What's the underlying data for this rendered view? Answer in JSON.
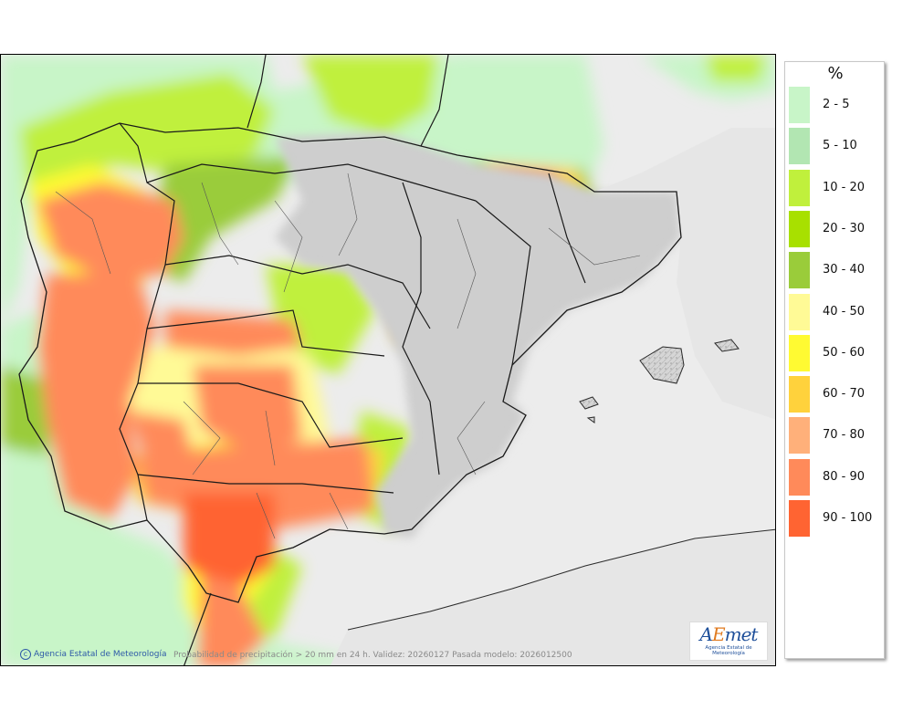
{
  "legend": {
    "title": "%",
    "items": [
      {
        "label": "2 - 5",
        "color": "#c8f5c8"
      },
      {
        "label": "5 - 10",
        "color": "#b2e6b2"
      },
      {
        "label": "10 - 20",
        "color": "#c0f03c"
      },
      {
        "label": "20 - 30",
        "color": "#a8e000"
      },
      {
        "label": "30 - 40",
        "color": "#9acc3a"
      },
      {
        "label": "40 - 50",
        "color": "#fffa96"
      },
      {
        "label": "50 - 60",
        "color": "#fffa32"
      },
      {
        "label": "60 - 70",
        "color": "#ffd23c"
      },
      {
        "label": "70 - 80",
        "color": "#ffb07a"
      },
      {
        "label": "80 - 90",
        "color": "#ff8a5a"
      },
      {
        "label": "90 - 100",
        "color": "#ff6432"
      }
    ]
  },
  "footer": {
    "copyright": "Agencia Estatal de Meteorología",
    "caption": "Probabilidad de precipitación > 20 mm en 24 h. Validez: 20260127 Pasada modelo: 2026012500"
  },
  "logo": {
    "wordmark_a": "A",
    "wordmark_e": "E",
    "wordmark_rest": "met",
    "subtitle": "Agencia Estatal de Meteorología"
  },
  "map_colors": {
    "sea": "#ececec",
    "land_dry": "#dcdcdc",
    "border": "#1a1a1a"
  }
}
